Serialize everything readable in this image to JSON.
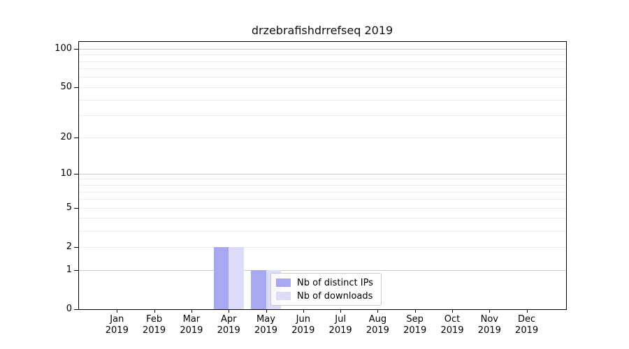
{
  "chart_data": {
    "type": "bar",
    "title": "drzebrafishdrrefseq 2019",
    "months": [
      "Jan",
      "Feb",
      "Mar",
      "Apr",
      "May",
      "Jun",
      "Jul",
      "Aug",
      "Sep",
      "Oct",
      "Nov",
      "Dec"
    ],
    "year": "2019",
    "series": [
      {
        "name": "Nb of distinct IPs",
        "color": "#a8a8f0",
        "values": [
          0,
          0,
          0,
          2,
          1,
          0,
          0,
          0,
          0,
          0,
          0,
          0
        ]
      },
      {
        "name": "Nb of downloads",
        "color": "#dcdcf8",
        "values": [
          0,
          0,
          0,
          2,
          1,
          0,
          0,
          0,
          0,
          0,
          0,
          0
        ]
      }
    ],
    "yticks": [
      0,
      1,
      2,
      5,
      10,
      20,
      50,
      100
    ],
    "y_scale": "log1p",
    "ylim": [
      0,
      115
    ],
    "xlabel": "",
    "ylabel": "",
    "grid": "horizontal",
    "grid_minor_values": [
      2,
      3,
      4,
      5,
      6,
      7,
      8,
      9,
      20,
      30,
      40,
      50,
      60,
      70,
      80,
      90
    ],
    "grid_major_values": [
      1,
      10,
      100
    ],
    "legend_position": "lower-center",
    "colors": {
      "grid_minor": "#ececec",
      "grid_major": "#c9c9c9",
      "axis": "#000000",
      "legend_border": "#cccccc"
    }
  }
}
